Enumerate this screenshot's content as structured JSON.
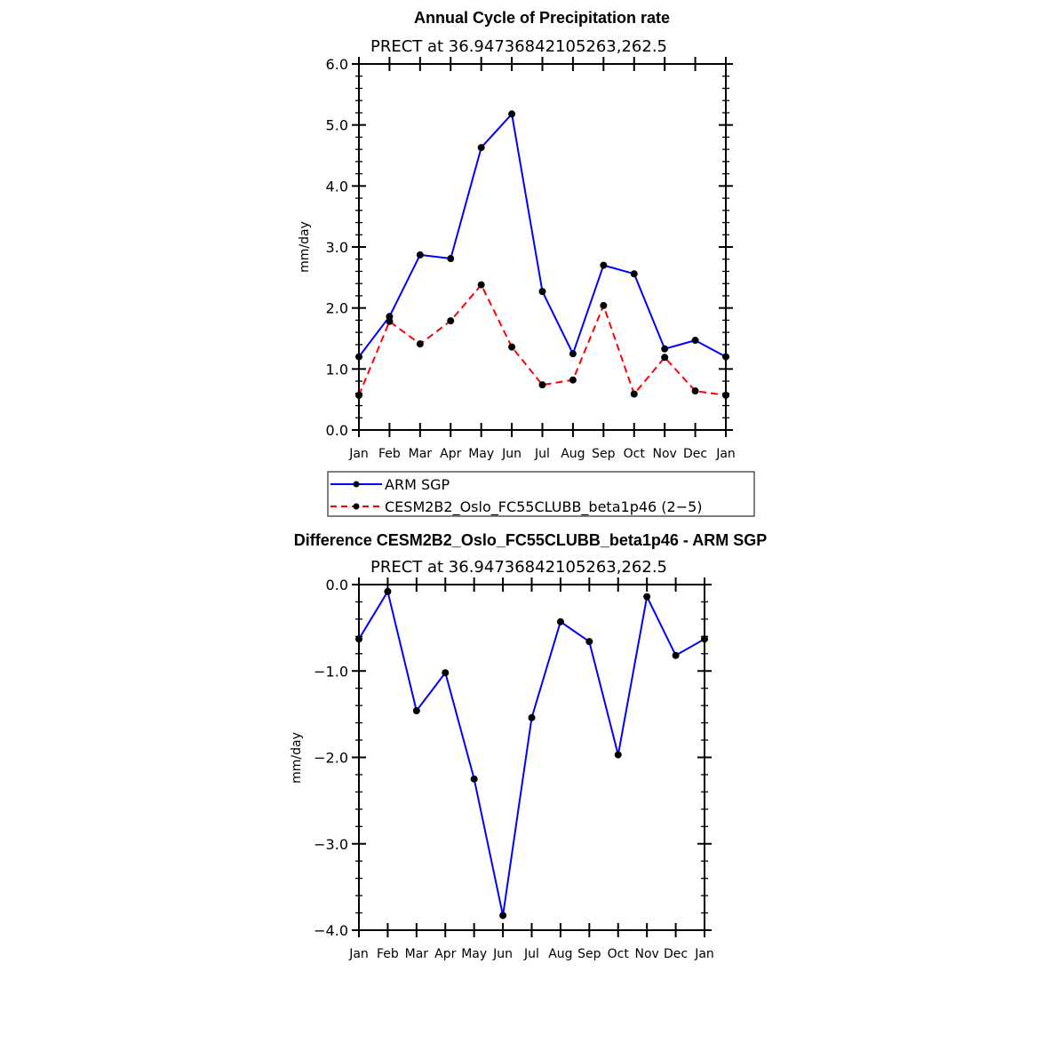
{
  "chart_data": [
    {
      "type": "line",
      "title": "Annual Cycle of Precipitation rate",
      "subtitle": "PRECT at 36.94736842105263,262.5",
      "xlabel": "",
      "ylabel": "mm/day",
      "categories": [
        "Jan",
        "Feb",
        "Mar",
        "Apr",
        "May",
        "Jun",
        "Jul",
        "Aug",
        "Sep",
        "Oct",
        "Nov",
        "Dec",
        "Jan"
      ],
      "ylim": [
        0,
        6
      ],
      "yticks": [
        "0.0",
        "1.0",
        "2.0",
        "3.0",
        "4.0",
        "5.0",
        "6.0"
      ],
      "ytick_values": [
        0,
        1,
        2,
        3,
        4,
        5,
        6
      ],
      "grid": false,
      "legend_position": "below",
      "series": [
        {
          "name": "ARM SGP",
          "color": "#0000ff",
          "dash": "solid",
          "values": [
            1.2,
            1.86,
            2.87,
            2.81,
            4.63,
            5.18,
            2.27,
            1.25,
            2.7,
            2.56,
            1.33,
            1.47,
            1.2
          ]
        },
        {
          "name": "CESM2B2_Oslo_FC55CLUBB_beta1p46 (2−5)",
          "color": "#ff0000",
          "dash": "dashed",
          "values": [
            0.57,
            1.78,
            1.41,
            1.79,
            2.38,
            1.36,
            0.74,
            0.82,
            2.04,
            0.59,
            1.19,
            0.64,
            0.57
          ]
        }
      ]
    },
    {
      "type": "line",
      "title": "Difference CESM2B2_Oslo_FC55CLUBB_beta1p46 - ARM SGP",
      "subtitle": "PRECT at 36.94736842105263,262.5",
      "xlabel": "",
      "ylabel": "mm/day",
      "categories": [
        "Jan",
        "Feb",
        "Mar",
        "Apr",
        "May",
        "Jun",
        "Jul",
        "Aug",
        "Sep",
        "Oct",
        "Nov",
        "Dec",
        "Jan"
      ],
      "ylim": [
        -4,
        0
      ],
      "yticks": [
        "−4.0",
        "−3.0",
        "−2.0",
        "−1.0",
        "0.0"
      ],
      "ytick_values": [
        -4,
        -3,
        -2,
        -1,
        0
      ],
      "grid": false,
      "series": [
        {
          "color": "#0000ff",
          "dash": "solid",
          "values": [
            -0.63,
            -0.08,
            -1.46,
            -1.02,
            -2.25,
            -3.83,
            -1.54,
            -0.43,
            -0.66,
            -1.97,
            -0.14,
            -0.82,
            -0.63
          ]
        }
      ]
    }
  ]
}
